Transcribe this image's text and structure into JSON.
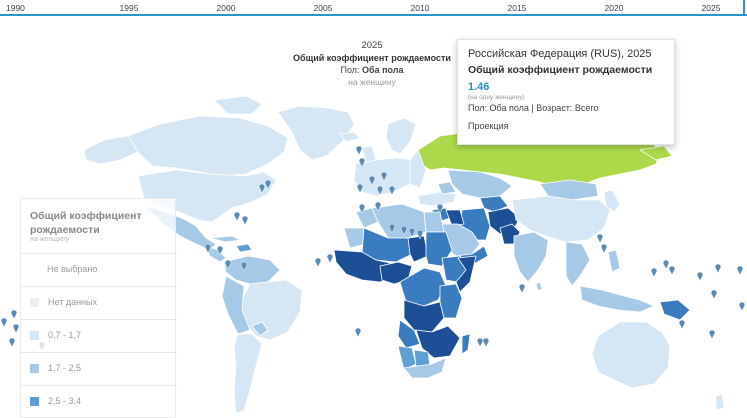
{
  "timeline": {
    "years": [
      "1990",
      "1995",
      "2000",
      "2005",
      "2010",
      "2015",
      "2020",
      "2025"
    ],
    "selected": "2025"
  },
  "map_title": {
    "year": "2025",
    "indicator": "Общий коэффициент рождаемости",
    "sex_label": "Пол:",
    "sex_value": "Оба пола",
    "unit": "на женщину"
  },
  "tooltip": {
    "country": "Российская Федерация (RUS), 2025",
    "indicator": "Общий коэффициент рождаемости",
    "value": "1.46",
    "unit": "(на одну женщину)",
    "meta": "Пол: Оба пола | Возраст: Всего",
    "projection": "Проекция"
  },
  "legend": {
    "title": "Общий коэффициент рождаемости",
    "unit": "на женщину",
    "items": [
      {
        "label": "Не выбрано",
        "color": ""
      },
      {
        "label": "Нет данных",
        "color": "#eeeeee"
      },
      {
        "label": "0,7 - 1,7",
        "color": "#d5e6f4"
      },
      {
        "label": "1,7 - 2,5",
        "color": "#a6c9e8"
      },
      {
        "label": "2,5 - 3,4",
        "color": "#5f9fd3"
      }
    ]
  },
  "colors": {
    "selected": "#acd94a",
    "timeline_accent": "#2e93c9",
    "accent_value": "#2e8bc6",
    "c0": "#d5e6f4",
    "c1": "#a6c9e8",
    "c2": "#5f9fd3",
    "c3": "#3a7cc0",
    "c4": "#1c4f96",
    "marker": "#5a8bb5"
  }
}
